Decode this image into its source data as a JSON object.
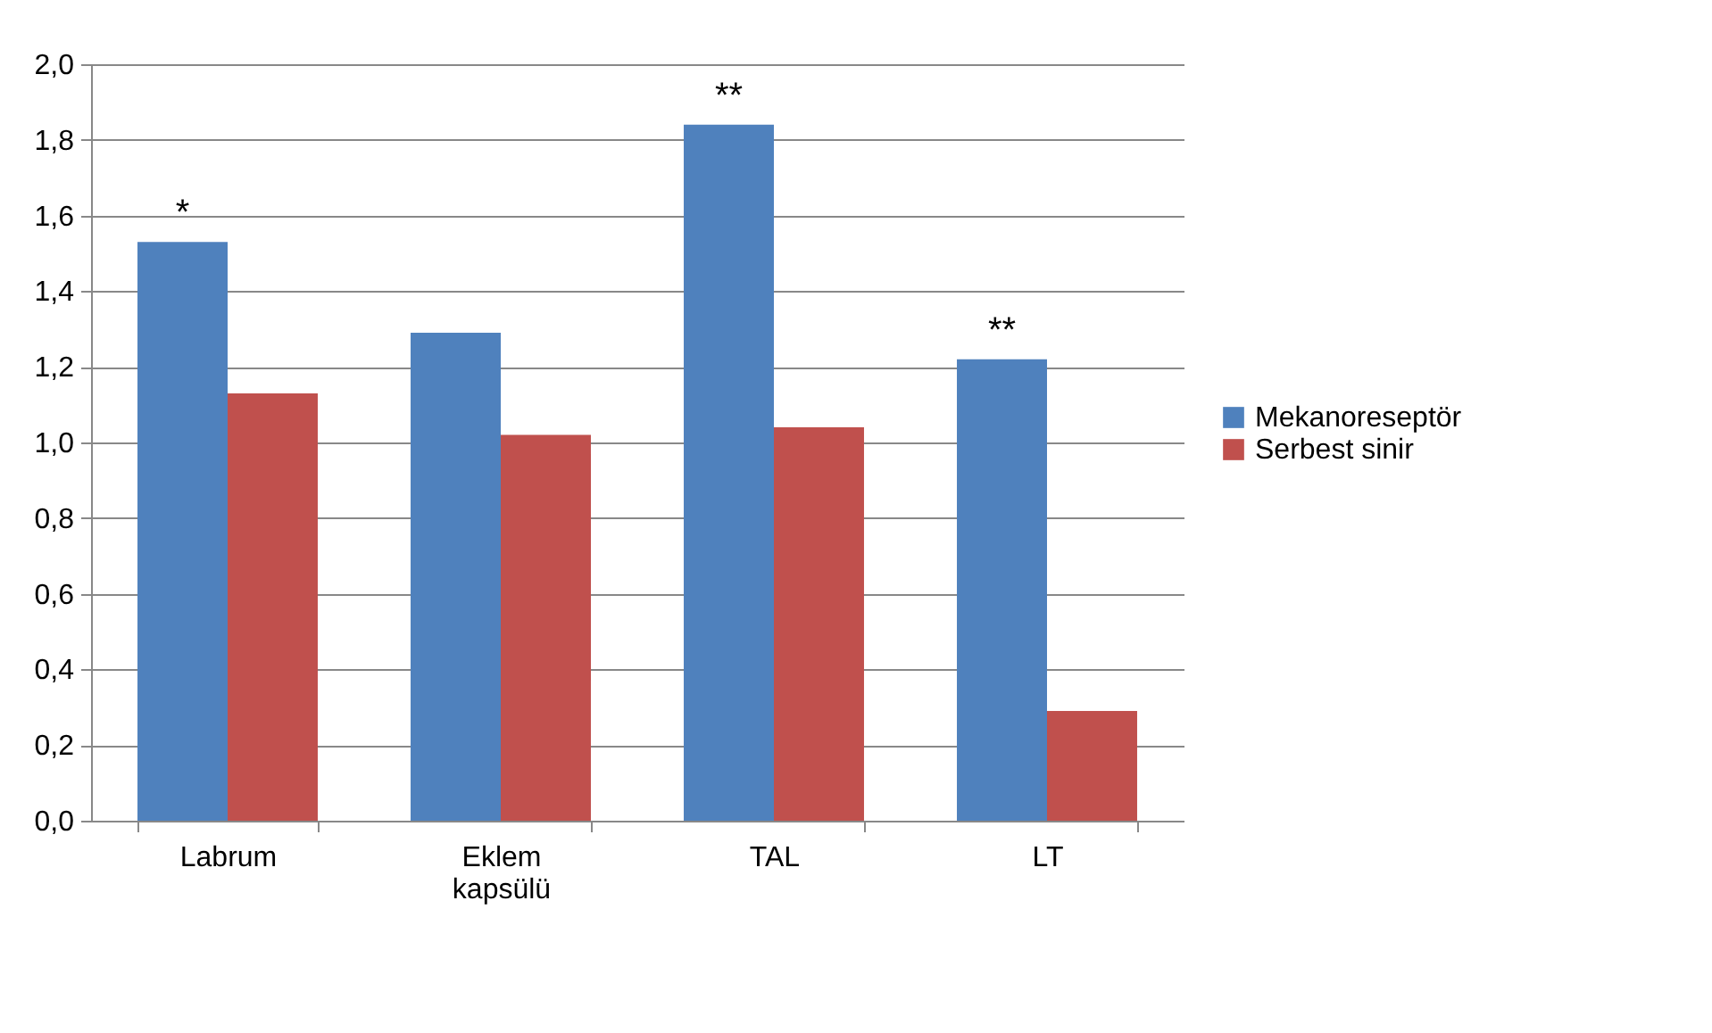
{
  "chart_data": {
    "type": "bar",
    "categories": [
      "Labrum",
      "Eklem kapsülü",
      "TAL",
      "LT"
    ],
    "series": [
      {
        "name": "Mekanoreseptör",
        "color": "#4f81bd",
        "values": [
          1.53,
          1.29,
          1.84,
          1.22
        ]
      },
      {
        "name": "Serbest sinir",
        "color": "#c0504d",
        "values": [
          1.13,
          1.02,
          1.04,
          0.29
        ]
      }
    ],
    "ylim": [
      0,
      2
    ],
    "yticks": [
      {
        "value": 0,
        "label": "0,0"
      },
      {
        "value": 0.2,
        "label": "0,2"
      },
      {
        "value": 0.4,
        "label": "0,4"
      },
      {
        "value": 0.6,
        "label": "0,6"
      },
      {
        "value": 0.8,
        "label": "0,8"
      },
      {
        "value": 1,
        "label": "1,0"
      },
      {
        "value": 1.2,
        "label": "1,2"
      },
      {
        "value": 1.4,
        "label": "1,4"
      },
      {
        "value": 1.6,
        "label": "1,6"
      },
      {
        "value": 1.8,
        "label": "1,8"
      },
      {
        "value": 2,
        "label": "2,0"
      }
    ],
    "annotations": [
      {
        "text": "*",
        "x": "Labrum",
        "y": 1.53
      },
      {
        "text": "**",
        "x": "TAL",
        "y": 1.84
      },
      {
        "text": "**",
        "x": "LT",
        "y": 1.22
      }
    ],
    "grid": "y",
    "legend": "right"
  }
}
